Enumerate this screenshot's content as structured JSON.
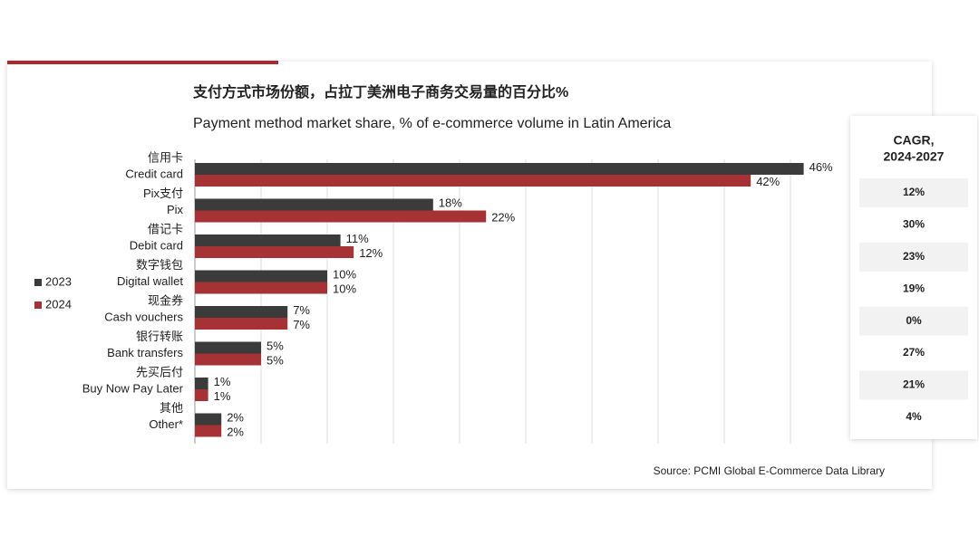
{
  "chart_data": {
    "type": "bar",
    "title": "支付方式市场份额，占拉丁美洲电子商务交易量的百分比%",
    "subtitle": "Payment method market share, % of e-commerce volume in Latin America",
    "categories_zh": [
      "信用卡",
      "Pix支付",
      "借记卡",
      "数字钱包",
      "现金券",
      "银行转账",
      "先买后付",
      "其他"
    ],
    "categories": [
      "Credit card",
      "Pix",
      "Debit card",
      "Digital wallet",
      "Cash vouchers",
      "Bank transfers",
      "Buy Now Pay Later",
      "Other*"
    ],
    "series": [
      {
        "name": "2023",
        "color": "#3b3b3b",
        "values": [
          46,
          18,
          11,
          10,
          7,
          5,
          1,
          2
        ],
        "value_labels": [
          "46%",
          "18%",
          "11%",
          "10%",
          "7%",
          "5%",
          "1%",
          "2%"
        ]
      },
      {
        "name": "2024",
        "color": "#a63236",
        "values": [
          42,
          22,
          12,
          10,
          7,
          5,
          1,
          2
        ],
        "value_labels": [
          "42%",
          "22%",
          "12%",
          "10%",
          "7%",
          "5%",
          "1%",
          "2%"
        ]
      }
    ],
    "xlim": [
      0,
      45
    ],
    "xticks": [
      0,
      5,
      10,
      15,
      20,
      25,
      30,
      35,
      40,
      45
    ],
    "grid": true,
    "legend": "left",
    "table": {
      "header": [
        "CAGR,",
        "2024-2027"
      ],
      "rows": [
        "12%",
        "30%",
        "23%",
        "19%",
        "0%",
        "27%",
        "21%",
        "4%"
      ]
    },
    "source": "Source: PCMI Global E-Commerce Data Library"
  }
}
